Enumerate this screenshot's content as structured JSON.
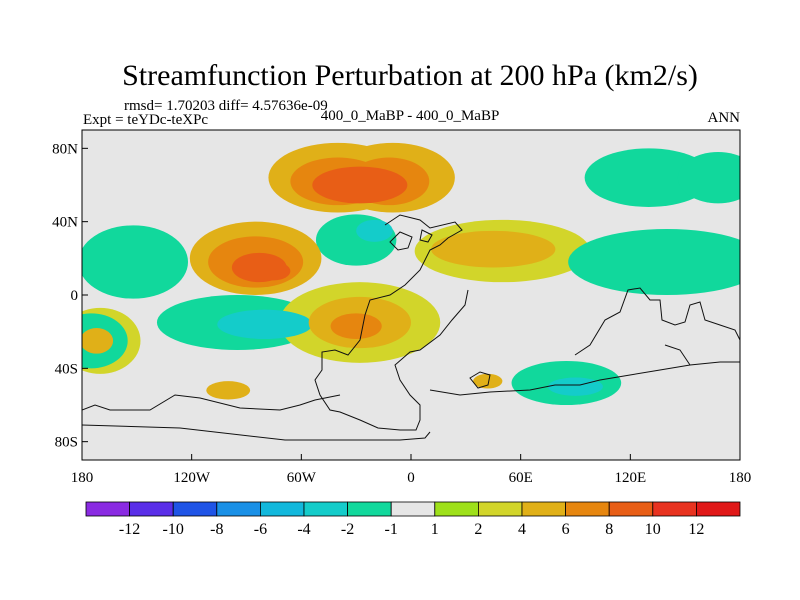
{
  "chart_data": {
    "type": "heatmap",
    "title": "Streamfunction Perturbation at 200 hPa (km2/s)",
    "stats": "rmsd= 1.70203  diff= 4.57636e-09",
    "experiment": "Expt = teYDc-teXPc",
    "subtitle": "400_0_MaBP - 400_0_MaBP",
    "period": "ANN",
    "x_ticks": [
      {
        "lon": -180,
        "label": "180"
      },
      {
        "lon": -120,
        "label": "120W"
      },
      {
        "lon": -60,
        "label": "60W"
      },
      {
        "lon": 0,
        "label": "0"
      },
      {
        "lon": 60,
        "label": "60E"
      },
      {
        "lon": 120,
        "label": "120E"
      },
      {
        "lon": 180,
        "label": "180"
      }
    ],
    "y_ticks": [
      {
        "lat": 80,
        "label": "80N"
      },
      {
        "lat": 40,
        "label": "40N"
      },
      {
        "lat": 0,
        "label": "0"
      },
      {
        "lat": -40,
        "label": "40S"
      },
      {
        "lat": -80,
        "label": "80S"
      }
    ],
    "xlim": [
      -180,
      180
    ],
    "ylim": [
      -90,
      90
    ],
    "colorbar": {
      "labels": [
        "-12",
        "-10",
        "-8",
        "-6",
        "-4",
        "-2",
        "-1",
        "1",
        "2",
        "4",
        "6",
        "8",
        "10",
        "12"
      ],
      "colors": [
        "#8a2be2",
        "#5a2ee8",
        "#1f54e6",
        "#1a90e6",
        "#12b8dc",
        "#14ccca",
        "#11d89c",
        "#e6e6e6",
        "#9ee01a",
        "#d2d52a",
        "#e0b018",
        "#e6860f",
        "#e85e16",
        "#e83320",
        "#e01818"
      ]
    },
    "field": [
      {
        "lon": 130,
        "lat": 64,
        "value": -2,
        "rx": 35,
        "ry": 16
      },
      {
        "lon": 168,
        "lat": 64,
        "value": -2,
        "rx": 22,
        "ry": 14
      },
      {
        "lon": -40,
        "lat": 64,
        "value": 4,
        "rx": 38,
        "ry": 19
      },
      {
        "lon": -10,
        "lat": 64,
        "value": 4,
        "rx": 34,
        "ry": 19
      },
      {
        "lon": -40,
        "lat": 62,
        "value": 6,
        "rx": 26,
        "ry": 13
      },
      {
        "lon": -12,
        "lat": 62,
        "value": 6,
        "rx": 22,
        "ry": 13
      },
      {
        "lon": -28,
        "lat": 60,
        "value": 8,
        "rx": 26,
        "ry": 10
      },
      {
        "lon": -85,
        "lat": 20,
        "value": 4,
        "rx": 36,
        "ry": 20
      },
      {
        "lon": -85,
        "lat": 18,
        "value": 6,
        "rx": 26,
        "ry": 14
      },
      {
        "lon": -83,
        "lat": 15,
        "value": 8,
        "rx": 15,
        "ry": 8
      },
      {
        "lon": -75,
        "lat": 13,
        "value": 8,
        "rx": 9,
        "ry": 5
      },
      {
        "lon": -152,
        "lat": 18,
        "value": -2,
        "rx": 30,
        "ry": 20
      },
      {
        "lon": -30,
        "lat": 30,
        "value": -2,
        "rx": 22,
        "ry": 14
      },
      {
        "lon": -20,
        "lat": 35,
        "value": -4,
        "rx": 10,
        "ry": 6
      },
      {
        "lon": 50,
        "lat": 24,
        "value": 2,
        "rx": 48,
        "ry": 17
      },
      {
        "lon": 45,
        "lat": 25,
        "value": 4,
        "rx": 34,
        "ry": 10
      },
      {
        "lon": 140,
        "lat": 18,
        "value": -2,
        "rx": 54,
        "ry": 18
      },
      {
        "lon": -95,
        "lat": -15,
        "value": -2,
        "rx": 44,
        "ry": 15
      },
      {
        "lon": -80,
        "lat": -16,
        "value": -4,
        "rx": 26,
        "ry": 8
      },
      {
        "lon": -28,
        "lat": -15,
        "value": 2,
        "rx": 44,
        "ry": 22
      },
      {
        "lon": -28,
        "lat": -15,
        "value": 4,
        "rx": 28,
        "ry": 14
      },
      {
        "lon": -30,
        "lat": -17,
        "value": 6,
        "rx": 14,
        "ry": 7
      },
      {
        "lon": -170,
        "lat": -25,
        "value": 2,
        "rx": 22,
        "ry": 18
      },
      {
        "lon": -172,
        "lat": -25,
        "value": 4,
        "rx": 9,
        "ry": 7
      },
      {
        "lon": -175,
        "lat": -25,
        "value": -2,
        "rx": 20,
        "ry": 15
      },
      {
        "lon": 90,
        "lat": -50,
        "value": -4,
        "rx": 15,
        "ry": 5
      },
      {
        "lon": 85,
        "lat": -48,
        "value": -2,
        "rx": 30,
        "ry": 12
      },
      {
        "lon": -100,
        "lat": -52,
        "value": 4,
        "rx": 12,
        "ry": 5
      },
      {
        "lon": 42,
        "lat": -47,
        "value": 4,
        "rx": 8,
        "ry": 4
      }
    ]
  }
}
